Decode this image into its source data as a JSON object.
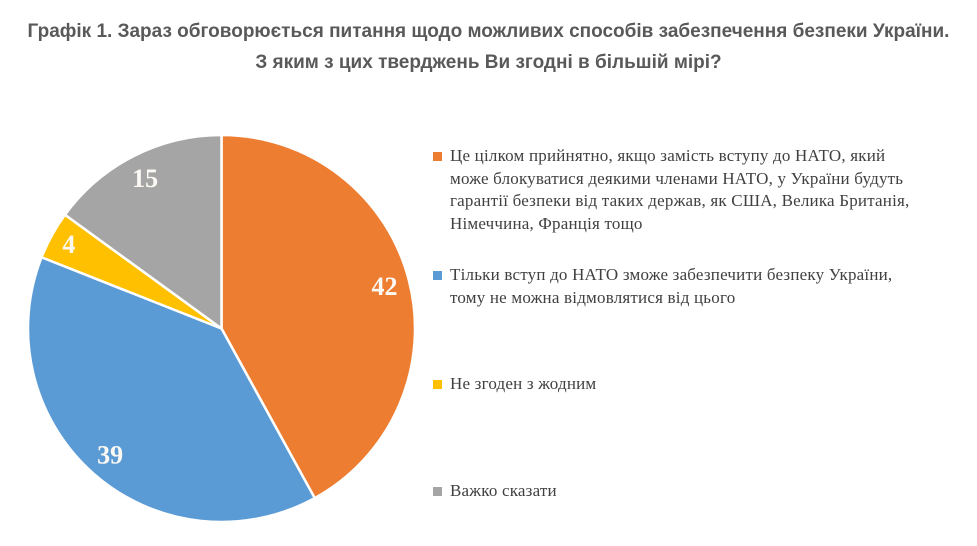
{
  "chart_data": {
    "type": "pie",
    "title": "Графік 1. Зараз обговорюється питання щодо можливих способів забезпечення безпеки України. З яким з цих тверджень Ви згодні в більшій мірі?",
    "unit": "percent",
    "start_angle_deg": 0,
    "direction": "clockwise",
    "legend_position": "right",
    "data_label_color": "#FFFFFF",
    "slices": [
      {
        "label": "Це цілком прийнятно, якщо замість вступу до НАТО, який може блокуватися деякими членами НАТО, у України будуть гарантії безпеки від таких держав, як США, Велика Британія, Німеччина, Франція тощо",
        "value": 42,
        "color": "#ED7D31"
      },
      {
        "label": "Тільки вступ до НАТО зможе забезпечити безпеку України, тому не можна відмовлятися від цього",
        "value": 39,
        "color": "#5B9BD5"
      },
      {
        "label": "Не згоден з жодним",
        "value": 4,
        "color": "#FFC000"
      },
      {
        "label": "Важко сказати",
        "value": 15,
        "color": "#A5A5A5"
      }
    ]
  }
}
